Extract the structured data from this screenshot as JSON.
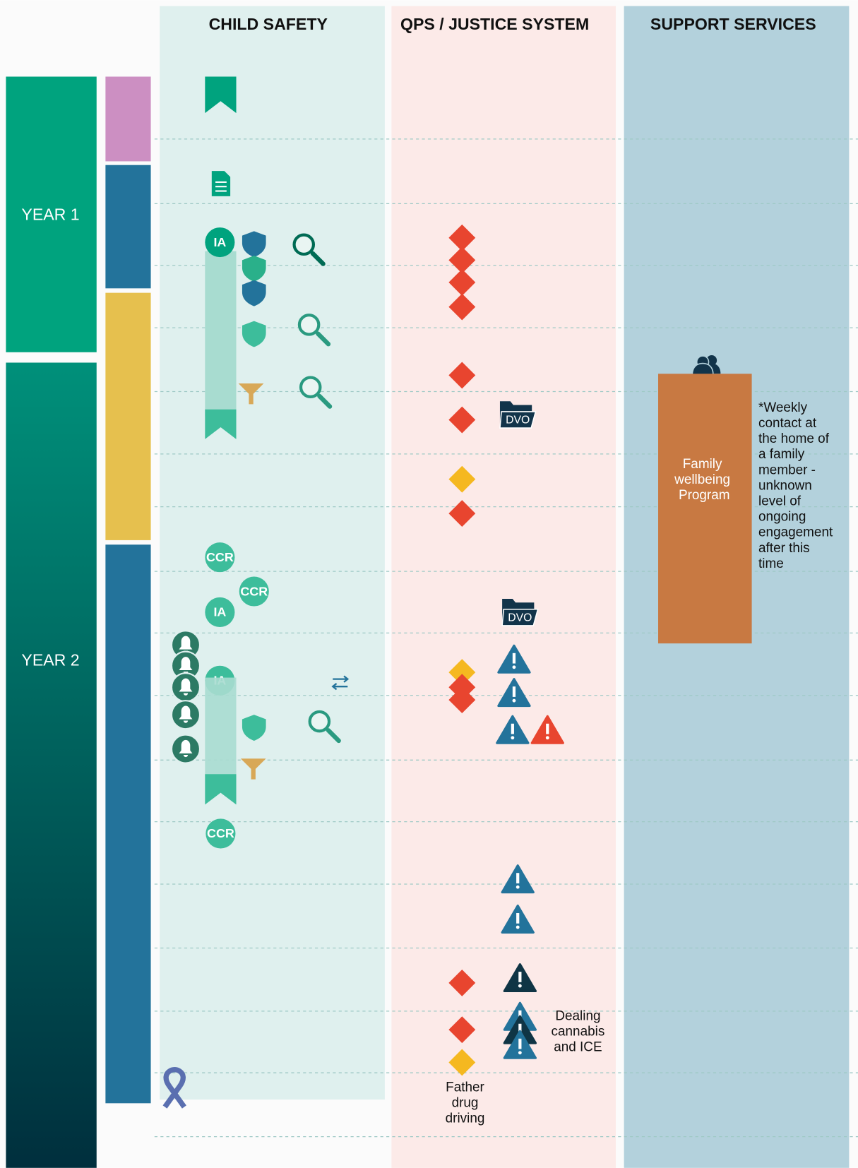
{
  "columns": [
    "CHILD SAFETY",
    "QPS / JUSTICE SYSTEM",
    "SUPPORT SERVICES"
  ],
  "years": [
    "YEAR 1",
    "YEAR 2"
  ],
  "child_safety_icons": {
    "ia": [
      "IA",
      "IA",
      "IA"
    ],
    "ccr": [
      "CCR",
      "CCR",
      "CCR"
    ]
  },
  "justice_icons": {
    "dvo": [
      "DVO",
      "DVO"
    ]
  },
  "program": {
    "label": [
      "Family",
      "wellbeing",
      "Program"
    ],
    "note": [
      "*Weekly",
      "contact at",
      "the home of",
      "a family",
      "member -",
      "unknown",
      "level of",
      "ongoing",
      "engagement",
      "after this",
      "time"
    ]
  },
  "annotations": {
    "dealing": [
      "Dealing",
      "cannabis",
      "and ICE"
    ],
    "father": [
      "Father",
      "drug",
      "driving"
    ]
  }
}
